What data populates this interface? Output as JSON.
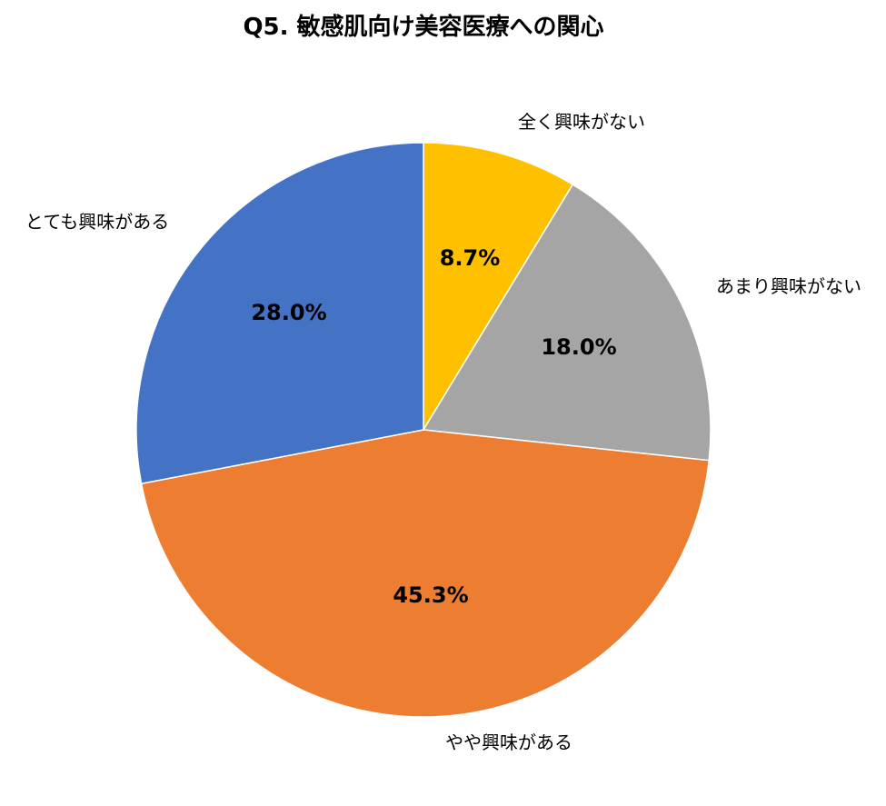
{
  "chart_data": {
    "type": "pie",
    "title": "Q5. 敏感肌向け美容医療への関心",
    "start_angle_deg": 0,
    "direction": "clockwise",
    "legend": "none",
    "slices": [
      {
        "label": "全く興味がない",
        "value": 8.7,
        "value_label": "8.7%",
        "color": "#FFC000"
      },
      {
        "label": "あまり興味がない",
        "value": 18.0,
        "value_label": "18.0%",
        "color": "#A5A5A5"
      },
      {
        "label": "やや興味がある",
        "value": 45.3,
        "value_label": "45.3%",
        "color": "#ED7D31"
      },
      {
        "label": "とても興味がある",
        "value": 28.0,
        "value_label": "28.0%",
        "color": "#4472C4"
      }
    ]
  }
}
